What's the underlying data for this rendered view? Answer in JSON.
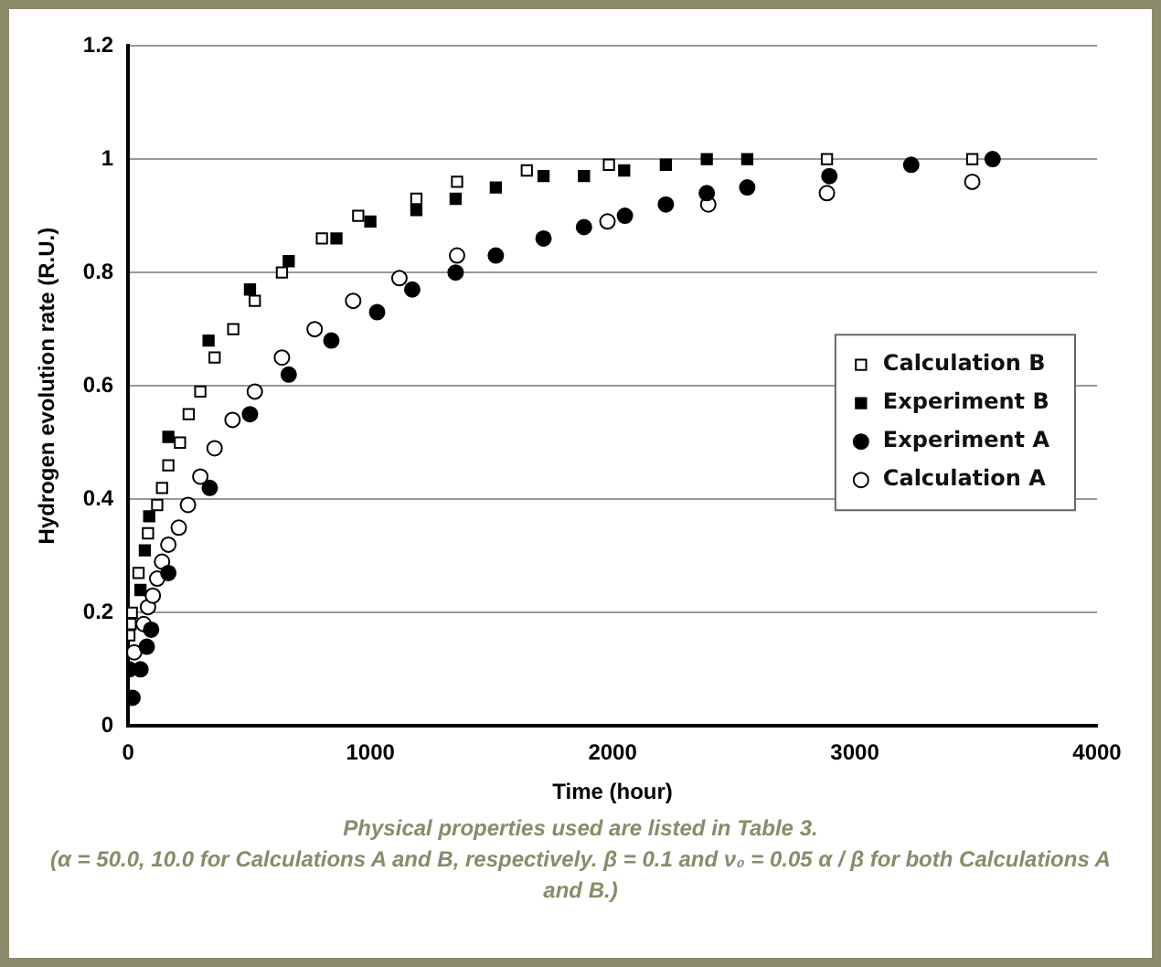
{
  "chart_data": {
    "type": "scatter",
    "xlabel": "Time (hour)",
    "ylabel": "Hydrogen evolution rate (R.U.)",
    "xlim": [
      0,
      4000
    ],
    "xticks": [
      0,
      1000,
      2000,
      3000,
      4000
    ],
    "ylim": [
      0,
      1.2
    ],
    "yticks": [
      0,
      0.2,
      0.4,
      0.6,
      0.8,
      1,
      1.2
    ],
    "grid": "y",
    "legend": "right",
    "series": [
      {
        "name": "Calculation B",
        "color": "#ffffff",
        "marker": "square",
        "x": [
          5,
          10,
          15,
          43,
          82,
          120,
          140,
          166,
          214,
          250,
          298,
          357,
          434,
          523,
          635,
          800,
          950,
          1190,
          1358,
          1646,
          1985,
          2885,
          3485
        ],
        "values": [
          0.16,
          0.18,
          0.2,
          0.27,
          0.34,
          0.39,
          0.42,
          0.46,
          0.5,
          0.55,
          0.59,
          0.65,
          0.7,
          0.75,
          0.8,
          0.86,
          0.9,
          0.93,
          0.96,
          0.98,
          0.99,
          1.0,
          1.0
        ]
      },
      {
        "name": "Experiment B",
        "color": "#000000",
        "marker": "square",
        "x": [
          51,
          69,
          87,
          166,
          332,
          503,
          663,
          860,
          1000,
          1190,
          1352,
          1518,
          1715,
          1882,
          2048,
          2220,
          2389,
          2556
        ],
        "values": [
          0.24,
          0.31,
          0.37,
          0.51,
          0.68,
          0.77,
          0.82,
          0.86,
          0.89,
          0.91,
          0.93,
          0.95,
          0.97,
          0.97,
          0.98,
          0.99,
          1.0,
          1.0
        ]
      },
      {
        "name": "Experiment A",
        "color": "#000000",
        "marker": "circle",
        "x": [
          5,
          18,
          51,
          77,
          95,
          166,
          337,
          503,
          663,
          839,
          1028,
          1173,
          1352,
          1518,
          1715,
          1882,
          2051,
          2220,
          2389,
          2556,
          2895,
          3233,
          3569
        ],
        "values": [
          0.1,
          0.05,
          0.1,
          0.14,
          0.17,
          0.27,
          0.42,
          0.55,
          0.62,
          0.68,
          0.73,
          0.77,
          0.8,
          0.83,
          0.86,
          0.88,
          0.9,
          0.92,
          0.94,
          0.95,
          0.97,
          0.99,
          1.0
        ]
      },
      {
        "name": "Calculation A",
        "color": "#ffffff",
        "marker": "circle",
        "x": [
          25,
          64,
          82,
          102,
          120,
          140,
          166,
          209,
          247,
          298,
          357,
          431,
          523,
          635,
          770,
          929,
          1120,
          1358,
          1979,
          2395,
          2885,
          3485
        ],
        "values": [
          0.13,
          0.18,
          0.21,
          0.23,
          0.26,
          0.29,
          0.32,
          0.35,
          0.39,
          0.44,
          0.49,
          0.54,
          0.59,
          0.65,
          0.7,
          0.75,
          0.79,
          0.83,
          0.89,
          0.92,
          0.94,
          0.96
        ]
      }
    ],
    "annotations": [
      "Physical properties used are listed in Table 3.",
      "(α = 50.0, 10.0 for Calculations A and B, respectively. β = 0.1 and ν₀ = 0.05 α / β for both Calculations A and B.)"
    ]
  }
}
